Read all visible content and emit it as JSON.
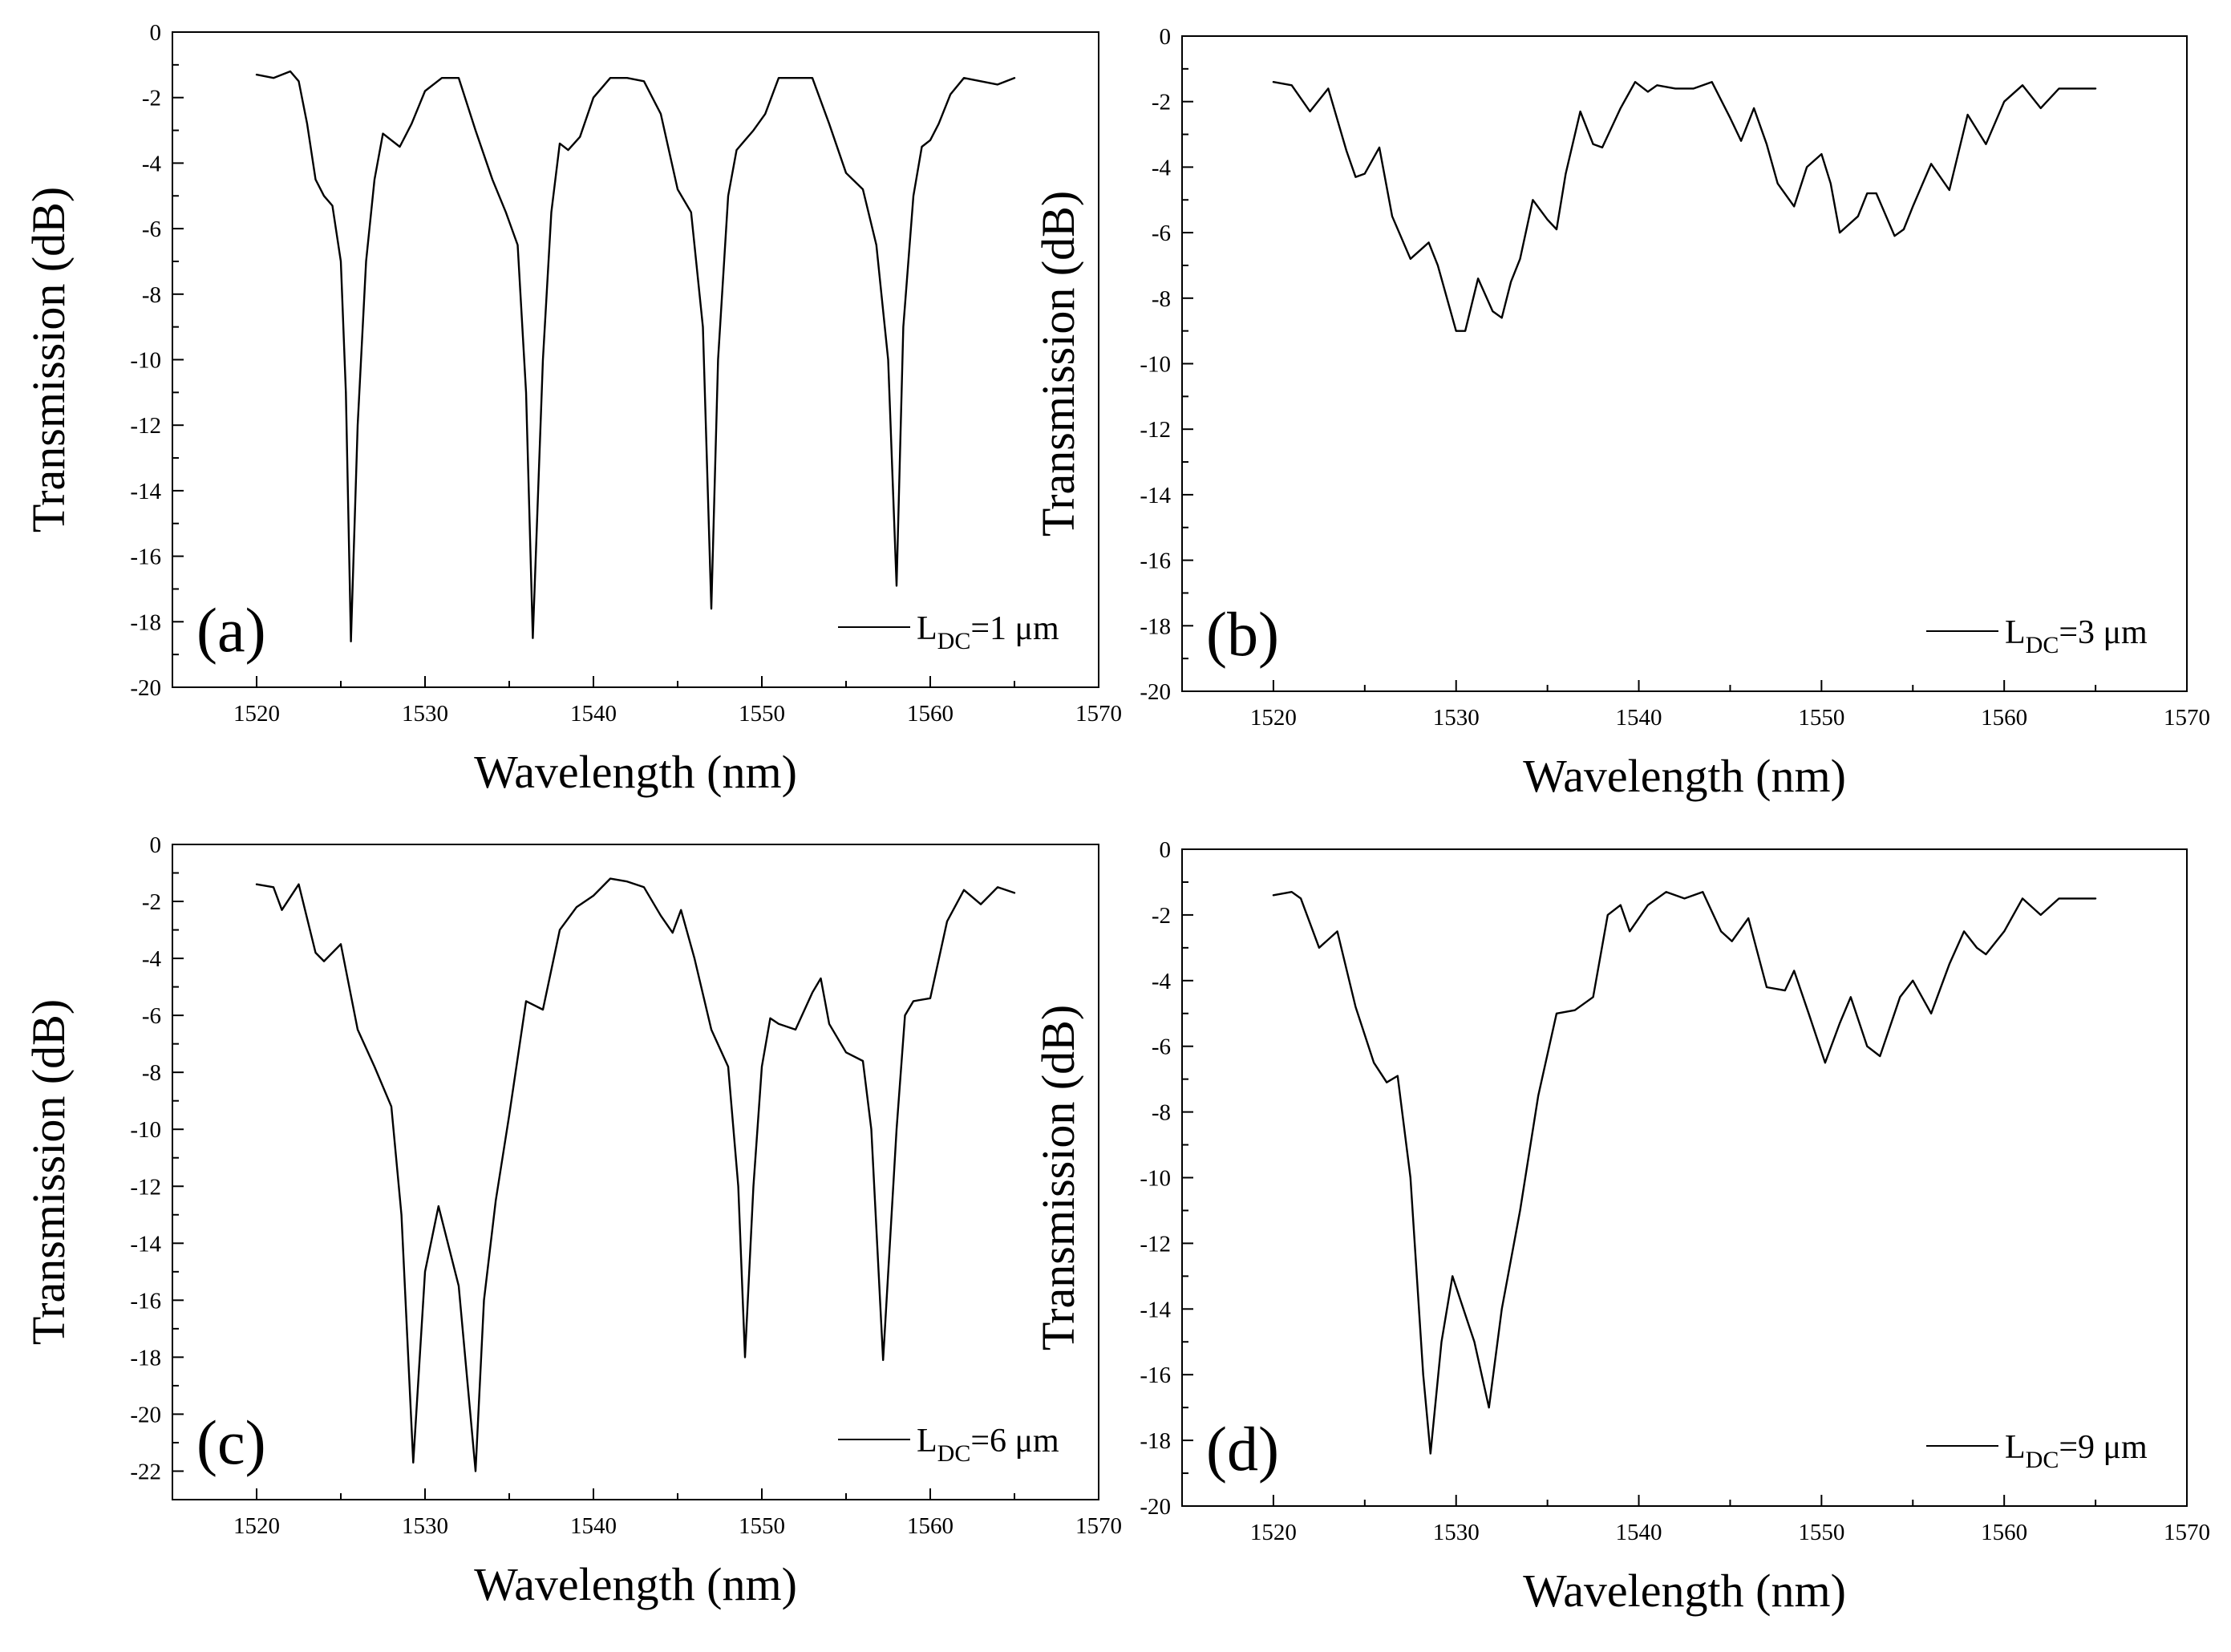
{
  "chart_data": [
    {
      "type": "line",
      "panel_label": "(a)",
      "xlabel": "Wavelength (nm)",
      "ylabel": "Transmission (dB)",
      "xlim": [
        1515,
        1570
      ],
      "ylim": [
        -20,
        0
      ],
      "xticks": [
        1520,
        1530,
        1540,
        1550,
        1560,
        1570
      ],
      "yticks": [
        0,
        -2,
        -4,
        -6,
        -8,
        -10,
        -12,
        -14,
        -16,
        -18,
        -20
      ],
      "legend": {
        "main": "L",
        "sub": "DC",
        "rest": "=1 μm",
        "placement": "bottom-right"
      },
      "series": [
        {
          "name": "L_DC=1 μm",
          "x": [
            1520.0,
            1521.0,
            1522.0,
            1522.5,
            1523.0,
            1523.5,
            1524.0,
            1524.5,
            1525.0,
            1525.3,
            1525.6,
            1526.0,
            1526.5,
            1527.0,
            1527.5,
            1528.0,
            1528.5,
            1529.2,
            1530.0,
            1531.0,
            1532.0,
            1533.0,
            1534.0,
            1534.8,
            1535.5,
            1536.0,
            1536.4,
            1537.0,
            1537.5,
            1538.0,
            1538.5,
            1539.2,
            1540.0,
            1541.0,
            1542.0,
            1543.0,
            1544.0,
            1545.0,
            1545.8,
            1546.5,
            1547.0,
            1547.4,
            1548.0,
            1548.5,
            1549.0,
            1549.5,
            1550.2,
            1551.0,
            1552.0,
            1553.0,
            1554.0,
            1555.0,
            1556.0,
            1556.8,
            1557.5,
            1558.0,
            1558.4,
            1559.0,
            1559.5,
            1560.0,
            1560.5,
            1561.2,
            1562.0,
            1563.0,
            1564.0,
            1565.0
          ],
          "y": [
            -1.3,
            -1.4,
            -1.2,
            -1.5,
            -2.8,
            -4.5,
            -5.0,
            -5.3,
            -7.0,
            -11.0,
            -18.6,
            -12.0,
            -7.0,
            -4.5,
            -3.1,
            -3.3,
            -3.5,
            -2.8,
            -1.8,
            -1.4,
            -1.4,
            -3.0,
            -4.5,
            -5.5,
            -6.5,
            -11.0,
            -18.5,
            -10.0,
            -5.5,
            -3.4,
            -3.6,
            -3.2,
            -2.0,
            -1.4,
            -1.4,
            -1.5,
            -2.5,
            -4.8,
            -5.5,
            -9.0,
            -17.6,
            -10.0,
            -5.0,
            -3.6,
            -3.3,
            -3.0,
            -2.5,
            -1.4,
            -1.4,
            -1.4,
            -2.8,
            -4.3,
            -4.8,
            -6.5,
            -10.0,
            -16.9,
            -9.0,
            -5.0,
            -3.5,
            -3.3,
            -2.8,
            -1.9,
            -1.4,
            -1.5,
            -1.6,
            -1.4
          ]
        }
      ]
    },
    {
      "type": "line",
      "panel_label": "(b)",
      "xlabel": "Wavelength (nm)",
      "ylabel": "Transmission (dB)",
      "xlim": [
        1515,
        1570
      ],
      "ylim": [
        -20,
        0
      ],
      "xticks": [
        1520,
        1530,
        1540,
        1550,
        1560,
        1570
      ],
      "yticks": [
        0,
        -2,
        -4,
        -6,
        -8,
        -10,
        -12,
        -14,
        -16,
        -18,
        -20
      ],
      "legend": {
        "main": "L",
        "sub": "DC",
        "rest": "=3 μm",
        "placement": "bottom-right"
      },
      "series": [
        {
          "name": "L_DC=3 μm",
          "x": [
            1520.0,
            1521.0,
            1522.0,
            1523.0,
            1524.0,
            1524.5,
            1525.0,
            1525.8,
            1526.5,
            1527.5,
            1528.5,
            1529.0,
            1530.0,
            1530.5,
            1531.2,
            1532.0,
            1532.5,
            1533.0,
            1533.5,
            1534.2,
            1535.0,
            1535.5,
            1536.0,
            1536.8,
            1537.5,
            1538.0,
            1539.0,
            1539.8,
            1540.5,
            1541.0,
            1542.0,
            1543.0,
            1544.0,
            1545.0,
            1545.6,
            1546.3,
            1547.0,
            1547.6,
            1548.5,
            1549.2,
            1550.0,
            1550.5,
            1551.0,
            1552.0,
            1552.5,
            1553.0,
            1554.0,
            1554.5,
            1555.0,
            1556.0,
            1557.0,
            1558.0,
            1559.0,
            1560.0,
            1561.0,
            1562.0,
            1563.0,
            1564.0,
            1565.0
          ],
          "y": [
            -1.4,
            -1.5,
            -2.3,
            -1.6,
            -3.5,
            -4.3,
            -4.2,
            -3.4,
            -5.5,
            -6.8,
            -6.3,
            -7.0,
            -9.0,
            -9.0,
            -7.4,
            -8.4,
            -8.6,
            -7.5,
            -6.8,
            -5.0,
            -5.6,
            -5.9,
            -4.2,
            -2.3,
            -3.3,
            -3.4,
            -2.2,
            -1.4,
            -1.7,
            -1.5,
            -1.6,
            -1.6,
            -1.4,
            -2.5,
            -3.2,
            -2.2,
            -3.3,
            -4.5,
            -5.2,
            -4.0,
            -3.6,
            -4.5,
            -6.0,
            -5.5,
            -4.8,
            -4.8,
            -6.1,
            -5.9,
            -5.2,
            -3.9,
            -4.7,
            -2.4,
            -3.3,
            -2.0,
            -1.5,
            -2.2,
            -1.6,
            -1.6,
            -1.6
          ]
        }
      ]
    },
    {
      "type": "line",
      "panel_label": "(c)",
      "xlabel": "Wavelength (nm)",
      "ylabel": "Transmission (dB)",
      "xlim": [
        1515,
        1570
      ],
      "ylim": [
        -23,
        0
      ],
      "xticks": [
        1520,
        1530,
        1540,
        1550,
        1560,
        1570
      ],
      "yticks": [
        0,
        -2,
        -4,
        -6,
        -8,
        -10,
        -12,
        -14,
        -16,
        -18,
        -20,
        -22
      ],
      "legend": {
        "main": "L",
        "sub": "DC",
        "rest": "=6 μm",
        "placement": "bottom-right"
      },
      "series": [
        {
          "name": "L_DC=6 μm",
          "x": [
            1520.0,
            1521.0,
            1521.5,
            1522.5,
            1523.5,
            1524.0,
            1525.0,
            1526.0,
            1527.0,
            1528.0,
            1528.6,
            1529.3,
            1530.0,
            1530.8,
            1532.0,
            1533.0,
            1533.5,
            1534.2,
            1535.0,
            1536.0,
            1537.0,
            1538.0,
            1539.0,
            1540.0,
            1541.0,
            1542.0,
            1543.0,
            1544.0,
            1544.7,
            1545.2,
            1546.0,
            1547.0,
            1548.0,
            1548.6,
            1549.0,
            1549.5,
            1550.0,
            1550.5,
            1551.0,
            1552.0,
            1553.0,
            1553.5,
            1554.0,
            1555.0,
            1556.0,
            1556.5,
            1557.2,
            1558.0,
            1558.5,
            1559.0,
            1560.0,
            1561.0,
            1562.0,
            1563.0,
            1564.0,
            1565.0
          ],
          "y": [
            -1.4,
            -1.5,
            -2.3,
            -1.4,
            -3.8,
            -4.1,
            -3.5,
            -6.5,
            -7.8,
            -9.2,
            -13.0,
            -21.7,
            -15.0,
            -12.7,
            -15.5,
            -22.0,
            -16.0,
            -12.5,
            -9.5,
            -5.5,
            -5.8,
            -3.0,
            -2.2,
            -1.8,
            -1.2,
            -1.3,
            -1.5,
            -2.5,
            -3.1,
            -2.3,
            -4.0,
            -6.5,
            -7.8,
            -12.0,
            -18.0,
            -12.0,
            -7.8,
            -6.1,
            -6.3,
            -6.5,
            -5.2,
            -4.7,
            -6.3,
            -7.3,
            -7.6,
            -10.0,
            -18.1,
            -10.0,
            -6.0,
            -5.5,
            -5.4,
            -2.7,
            -1.6,
            -2.1,
            -1.5,
            -1.7
          ]
        }
      ]
    },
    {
      "type": "line",
      "panel_label": "(d)",
      "xlabel": "Wavelength (nm)",
      "ylabel": "Transmission (dB)",
      "xlim": [
        1515,
        1570
      ],
      "ylim": [
        -20,
        0
      ],
      "xticks": [
        1520,
        1530,
        1540,
        1550,
        1560,
        1570
      ],
      "yticks": [
        0,
        -2,
        -4,
        -6,
        -8,
        -10,
        -12,
        -14,
        -16,
        -18,
        -20
      ],
      "legend": {
        "main": "L",
        "sub": "DC",
        "rest": "=9 μm",
        "placement": "bottom-right"
      },
      "series": [
        {
          "name": "L_DC=9 μm",
          "x": [
            1520.0,
            1521.0,
            1521.5,
            1522.5,
            1523.5,
            1524.5,
            1525.5,
            1526.2,
            1526.8,
            1527.5,
            1528.2,
            1528.6,
            1529.2,
            1529.8,
            1531.0,
            1531.8,
            1532.5,
            1533.5,
            1534.5,
            1535.5,
            1536.5,
            1537.5,
            1538.3,
            1539.0,
            1539.5,
            1540.5,
            1541.5,
            1542.5,
            1543.5,
            1544.5,
            1545.1,
            1546.0,
            1547.0,
            1548.0,
            1548.5,
            1549.3,
            1550.2,
            1551.0,
            1551.6,
            1552.5,
            1553.2,
            1554.3,
            1555.0,
            1556.0,
            1557.0,
            1557.8,
            1558.5,
            1559.0,
            1560.0,
            1561.0,
            1562.0,
            1563.0,
            1564.0,
            1565.0
          ],
          "y": [
            -1.4,
            -1.3,
            -1.5,
            -3.0,
            -2.5,
            -4.8,
            -6.5,
            -7.1,
            -6.9,
            -10.0,
            -16.0,
            -18.4,
            -15.0,
            -13.0,
            -15.0,
            -17.0,
            -14.0,
            -11.0,
            -7.5,
            -5.0,
            -4.9,
            -4.5,
            -2.0,
            -1.7,
            -2.5,
            -1.7,
            -1.3,
            -1.5,
            -1.3,
            -2.5,
            -2.8,
            -2.1,
            -4.2,
            -4.3,
            -3.7,
            -5.0,
            -6.5,
            -5.3,
            -4.5,
            -6.0,
            -6.3,
            -4.5,
            -4.0,
            -5.0,
            -3.5,
            -2.5,
            -3.0,
            -3.2,
            -2.5,
            -1.5,
            -2.0,
            -1.5,
            -1.5,
            -1.5
          ]
        }
      ]
    }
  ]
}
